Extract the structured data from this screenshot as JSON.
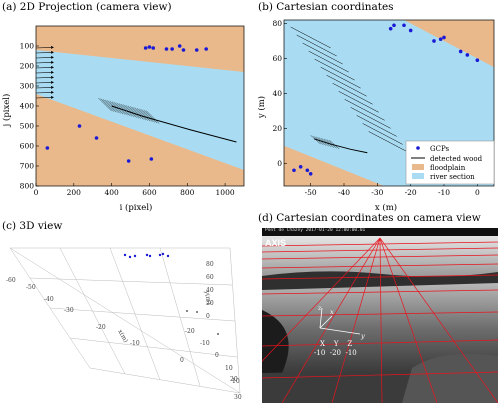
{
  "panels": {
    "a_title": "(a) 2D  Projection (camera view)",
    "b_title": "(b) Cartesian coordinates",
    "c_title": "(c) 3D view",
    "d_title": "(d) Cartesian coordinates on camera view"
  },
  "colors": {
    "floodplain": "#e9b98b",
    "river": "#a9dcf2",
    "gcp": "#1a1ad6",
    "wood": "#000000",
    "overlay_grid": "#e8141e"
  },
  "chart_data": [
    {
      "id": "a",
      "type": "scatter",
      "title": "(a) 2D  Projection (camera view)",
      "xlabel": "i (pixel)",
      "ylabel": "j (pixel)",
      "xlim": [
        0,
        1100
      ],
      "ylim": [
        800,
        0
      ],
      "xticks": [
        "0",
        "200",
        "400",
        "600",
        "800",
        "1000"
      ],
      "yticks": [
        "100",
        "200",
        "300",
        "400",
        "500",
        "600",
        "700",
        "800"
      ],
      "series": [
        {
          "name": "GCPs",
          "points": [
            [
              580,
              110
            ],
            [
              600,
              105
            ],
            [
              620,
              110
            ],
            [
              690,
              115
            ],
            [
              720,
              115
            ],
            [
              760,
              100
            ],
            [
              780,
              120
            ],
            [
              850,
              120
            ],
            [
              900,
              115
            ],
            [
              60,
              610
            ],
            [
              230,
              500
            ],
            [
              320,
              560
            ],
            [
              490,
              675
            ],
            [
              610,
              665
            ]
          ]
        }
      ]
    },
    {
      "id": "b",
      "type": "scatter",
      "title": "(b) Cartesian coordinates",
      "xlabel": "x (m)",
      "ylabel": "y (m)",
      "xlim": [
        -58,
        5
      ],
      "ylim": [
        -13,
        82
      ],
      "xticks": [
        "-50",
        "-40",
        "-30",
        "-20",
        "-10",
        "0"
      ],
      "yticks": [
        "0",
        "20",
        "40",
        "60",
        "80"
      ],
      "legend": [
        "GCPs",
        "detected wood",
        "floodplain",
        "river section"
      ],
      "legend_position": "lower-right",
      "series": [
        {
          "name": "GCPs",
          "points": [
            [
              -26,
              77
            ],
            [
              -25,
              79
            ],
            [
              -22,
              79
            ],
            [
              -20,
              76
            ],
            [
              -13,
              70
            ],
            [
              -11,
              71
            ],
            [
              -10,
              72
            ],
            [
              -5,
              64
            ],
            [
              -3,
              62
            ],
            [
              0,
              59
            ],
            [
              -55,
              -4
            ],
            [
              -53,
              -2
            ],
            [
              -51,
              -4
            ],
            [
              -50,
              -6
            ]
          ]
        }
      ]
    },
    {
      "id": "c",
      "type": "scatter",
      "title": "(c) 3D view",
      "labels": [
        "x(m)",
        "y(m)"
      ],
      "xticks": [
        "-60",
        "-50",
        "-40",
        "-30",
        "-20",
        "-10",
        "0",
        "10"
      ],
      "yticks": [
        "0",
        "20",
        "40",
        "60",
        "80"
      ],
      "zticks": [
        "40",
        "-20",
        "-10",
        "0",
        "10",
        "20",
        "30"
      ]
    }
  ],
  "camera": {
    "brand": "AXIS",
    "timestamp": "Pont de Chazey  2017-01-20  12:00:00.01",
    "axis_labels": [
      "X",
      "Y",
      "Z"
    ],
    "tick_labels": [
      "-10",
      "-20",
      "-10"
    ],
    "local_axis_labels": [
      "z",
      "x",
      "y"
    ]
  }
}
